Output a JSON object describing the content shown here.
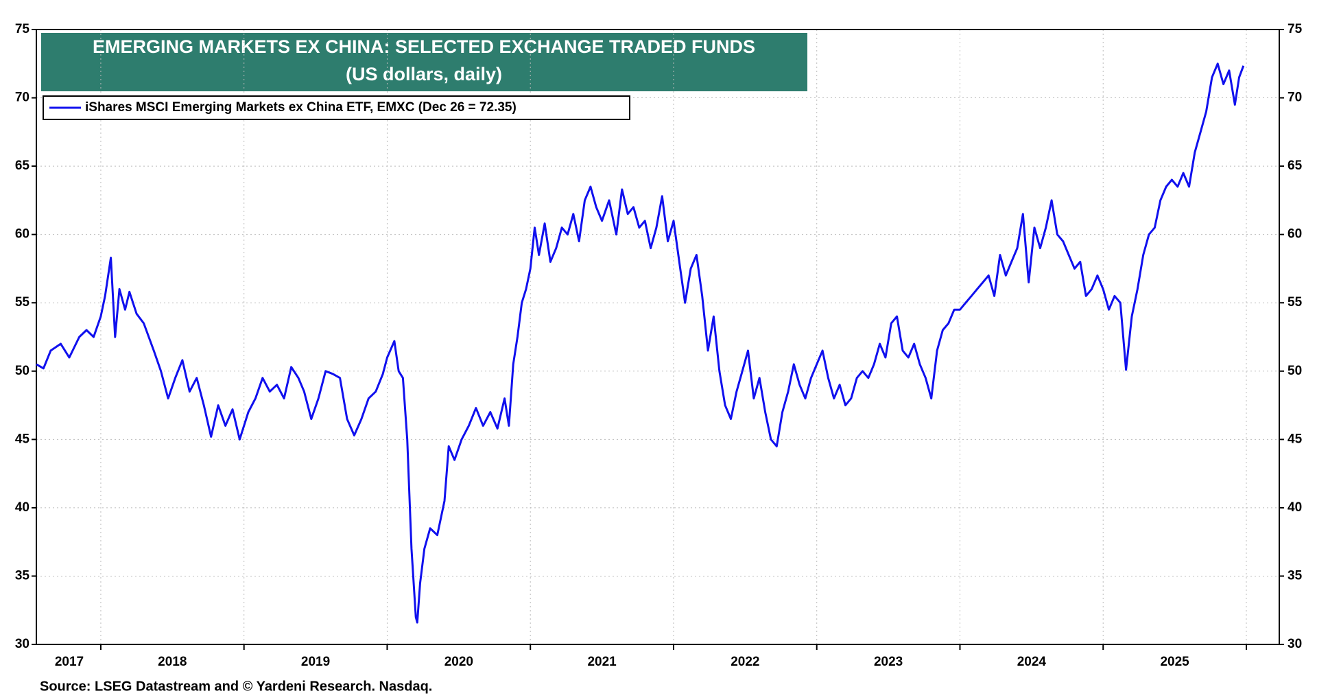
{
  "chart_data": {
    "type": "line",
    "title": "EMERGING MARKETS EX CHINA: SELECTED EXCHANGE TRADED FUNDS",
    "subtitle": "(US dollars, daily)",
    "source": "Source: LSEG Datastream and © Yardeni Research. Nasdaq.",
    "x": [
      2017.55,
      2017.6,
      2017.65,
      2017.72,
      2017.78,
      2017.85,
      2017.9,
      2017.95,
      2018.0,
      2018.03,
      2018.07,
      2018.1,
      2018.13,
      2018.17,
      2018.2,
      2018.25,
      2018.3,
      2018.37,
      2018.42,
      2018.47,
      2018.52,
      2018.57,
      2018.62,
      2018.67,
      2018.72,
      2018.77,
      2018.82,
      2018.87,
      2018.92,
      2018.97,
      2019.03,
      2019.08,
      2019.13,
      2019.18,
      2019.23,
      2019.28,
      2019.33,
      2019.38,
      2019.42,
      2019.47,
      2019.52,
      2019.57,
      2019.62,
      2019.67,
      2019.72,
      2019.77,
      2019.82,
      2019.87,
      2019.92,
      2019.97,
      2020.0,
      2020.05,
      2020.08,
      2020.11,
      2020.14,
      2020.17,
      2020.2,
      2020.21,
      2020.23,
      2020.26,
      2020.3,
      2020.35,
      2020.4,
      2020.43,
      2020.47,
      2020.52,
      2020.57,
      2020.62,
      2020.67,
      2020.72,
      2020.77,
      2020.82,
      2020.85,
      2020.88,
      2020.91,
      2020.94,
      2020.97,
      2021.0,
      2021.03,
      2021.06,
      2021.1,
      2021.14,
      2021.18,
      2021.22,
      2021.26,
      2021.3,
      2021.34,
      2021.38,
      2021.42,
      2021.46,
      2021.5,
      2021.55,
      2021.6,
      2021.64,
      2021.68,
      2021.72,
      2021.76,
      2021.8,
      2021.84,
      2021.88,
      2021.92,
      2021.96,
      2022.0,
      2022.04,
      2022.08,
      2022.12,
      2022.16,
      2022.2,
      2022.24,
      2022.28,
      2022.32,
      2022.36,
      2022.4,
      2022.44,
      2022.48,
      2022.52,
      2022.56,
      2022.6,
      2022.64,
      2022.68,
      2022.72,
      2022.76,
      2022.8,
      2022.84,
      2022.88,
      2022.92,
      2022.96,
      2023.0,
      2023.04,
      2023.08,
      2023.12,
      2023.16,
      2023.2,
      2023.24,
      2023.28,
      2023.32,
      2023.36,
      2023.4,
      2023.44,
      2023.48,
      2023.52,
      2023.56,
      2023.6,
      2023.64,
      2023.68,
      2023.72,
      2023.76,
      2023.8,
      2023.84,
      2023.88,
      2023.92,
      2023.96,
      2024.0,
      2024.04,
      2024.08,
      2024.12,
      2024.16,
      2024.2,
      2024.24,
      2024.28,
      2024.32,
      2024.36,
      2024.4,
      2024.44,
      2024.48,
      2024.52,
      2024.56,
      2024.6,
      2024.64,
      2024.68,
      2024.72,
      2024.76,
      2024.8,
      2024.84,
      2024.88,
      2024.92,
      2024.96,
      2025.0,
      2025.04,
      2025.08,
      2025.12,
      2025.16,
      2025.2,
      2025.24,
      2025.28,
      2025.32,
      2025.36,
      2025.4,
      2025.44,
      2025.48,
      2025.52,
      2025.56,
      2025.6,
      2025.64,
      2025.68,
      2025.72,
      2025.76,
      2025.8,
      2025.84,
      2025.88,
      2025.92,
      2025.95,
      2025.98
    ],
    "series": [
      {
        "name": "iShares MSCI Emerging Markets ex China ETF, EMXC (Dec 26 = 72.35)",
        "color": "#1010ee",
        "values": [
          50.5,
          50.2,
          51.5,
          52.0,
          51.0,
          52.5,
          53.0,
          52.5,
          54.0,
          55.5,
          58.3,
          52.5,
          56.0,
          54.5,
          55.8,
          54.2,
          53.5,
          51.5,
          50.0,
          48.0,
          49.5,
          50.8,
          48.5,
          49.5,
          47.5,
          45.2,
          47.5,
          46.0,
          47.2,
          45.0,
          47.0,
          48.0,
          49.5,
          48.5,
          49.0,
          48.0,
          50.3,
          49.5,
          48.5,
          46.5,
          48.0,
          50.0,
          49.8,
          49.5,
          46.5,
          45.3,
          46.5,
          48.0,
          48.5,
          49.8,
          51.0,
          52.2,
          50.0,
          49.5,
          45.0,
          37.0,
          32.0,
          31.6,
          34.5,
          37.0,
          38.5,
          38.0,
          40.5,
          44.5,
          43.5,
          45.0,
          46.0,
          47.3,
          46.0,
          47.0,
          45.8,
          48.0,
          46.0,
          50.5,
          52.5,
          55.0,
          56.0,
          57.5,
          60.5,
          58.5,
          60.8,
          58.0,
          59.0,
          60.5,
          60.0,
          61.5,
          59.5,
          62.5,
          63.5,
          62.0,
          61.0,
          62.5,
          60.0,
          63.3,
          61.5,
          62.0,
          60.5,
          61.0,
          59.0,
          60.5,
          62.8,
          59.5,
          61.0,
          58.0,
          55.0,
          57.5,
          58.5,
          55.5,
          51.5,
          54.0,
          50.0,
          47.5,
          46.5,
          48.5,
          50.0,
          51.5,
          48.0,
          49.5,
          47.0,
          45.0,
          44.5,
          47.0,
          48.5,
          50.5,
          49.0,
          48.0,
          49.5,
          50.5,
          51.5,
          49.5,
          48.0,
          49.0,
          47.5,
          48.0,
          49.5,
          50.0,
          49.5,
          50.5,
          52.0,
          51.0,
          53.5,
          54.0,
          51.5,
          51.0,
          52.0,
          50.5,
          49.5,
          48.0,
          51.5,
          53.0,
          53.5,
          54.5,
          54.5,
          55.0,
          55.5,
          56.0,
          56.5,
          57.0,
          55.5,
          58.5,
          57.0,
          58.0,
          59.0,
          61.5,
          56.5,
          60.5,
          59.0,
          60.5,
          62.5,
          60.0,
          59.5,
          58.5,
          57.5,
          58.0,
          55.5,
          56.0,
          57.0,
          56.0,
          54.5,
          55.5,
          55.0,
          50.1,
          54.0,
          56.0,
          58.5,
          60.0,
          60.5,
          62.5,
          63.5,
          64.0,
          63.5,
          64.5,
          63.5,
          66.0,
          67.5,
          69.0,
          71.5,
          72.5,
          71.0,
          72.0,
          69.5,
          71.5,
          72.35
        ]
      }
    ],
    "xlim": [
      2017.55,
      2026.23
    ],
    "xgrid": [
      2018,
      2019,
      2020,
      2021,
      2022,
      2023,
      2024,
      2025,
      2026
    ],
    "xticks": [
      {
        "value": 2017.78,
        "label": "2017"
      },
      {
        "value": 2018.5,
        "label": "2018"
      },
      {
        "value": 2019.5,
        "label": "2019"
      },
      {
        "value": 2020.5,
        "label": "2020"
      },
      {
        "value": 2021.5,
        "label": "2021"
      },
      {
        "value": 2022.5,
        "label": "2022"
      },
      {
        "value": 2023.5,
        "label": "2023"
      },
      {
        "value": 2024.5,
        "label": "2024"
      },
      {
        "value": 2025.5,
        "label": "2025"
      }
    ],
    "ylim": [
      30,
      75
    ],
    "yticks": [
      30,
      35,
      40,
      45,
      50,
      55,
      60,
      65,
      70,
      75
    ],
    "grid": true,
    "legend": "upper left"
  }
}
